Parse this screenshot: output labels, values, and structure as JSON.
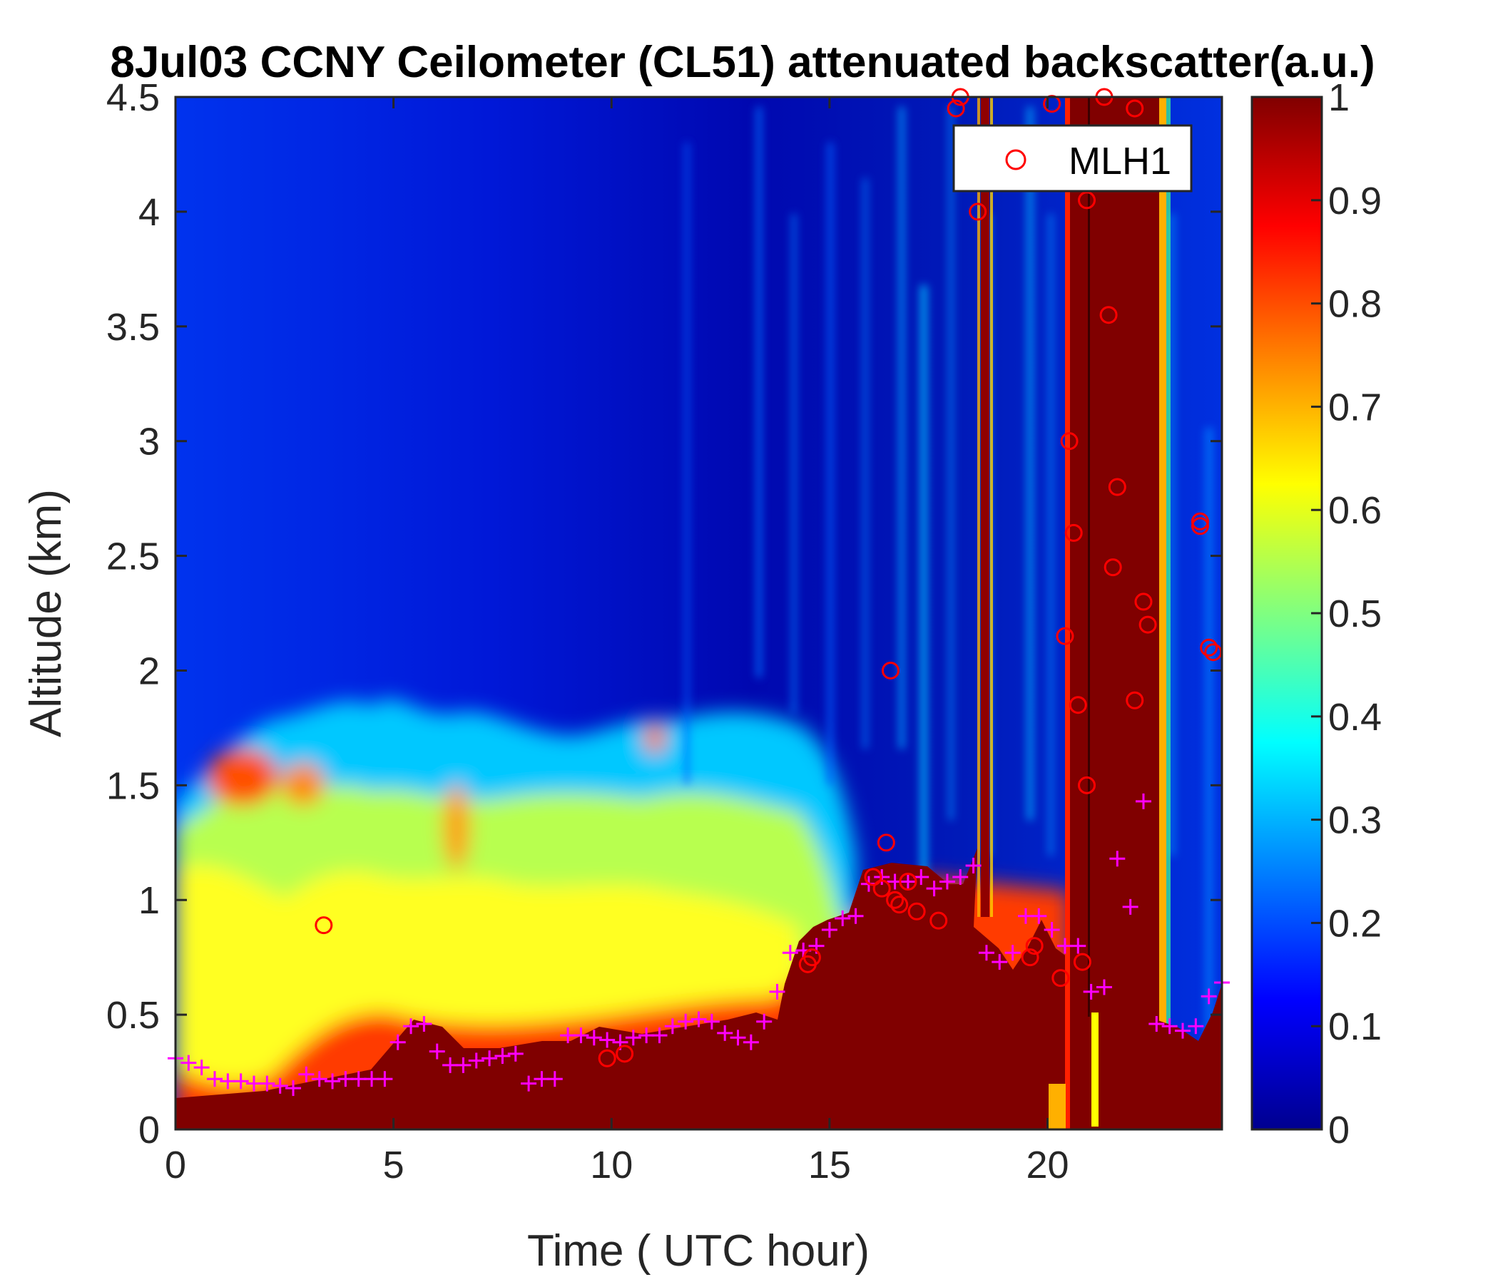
{
  "chart_data": {
    "type": "heatmap",
    "title": "8Jul03 CCNY Ceilometer (CL51) attenuated backscatter(a.u.)",
    "xlabel": "Time ( UTC hour)",
    "ylabel": "Altitude (km)",
    "xlim": [
      0,
      24
    ],
    "ylim": [
      0,
      4.5
    ],
    "xticks": [
      "0",
      "5",
      "10",
      "15",
      "20"
    ],
    "yticks": [
      "0",
      "0.5",
      "1",
      "1.5",
      "2",
      "2.5",
      "3",
      "3.5",
      "4",
      "4.5"
    ],
    "colorbar": {
      "range": [
        0,
        1
      ],
      "ticks": [
        "0",
        "0.1",
        "0.2",
        "0.3",
        "0.4",
        "0.5",
        "0.6",
        "0.7",
        "0.8",
        "0.9",
        "1"
      ],
      "colormap": [
        "#00008f",
        "#0000ff",
        "#0080ff",
        "#00ffff",
        "#80ff80",
        "#ffff00",
        "#ff8000",
        "#ff0000",
        "#800000"
      ]
    },
    "legend": {
      "placement": "top-right",
      "entries": [
        "MLH1"
      ]
    },
    "colors": {
      "mlh1": "#ff0000",
      "cross": "#ff00ff",
      "saturated": "#800000"
    },
    "series": [
      {
        "name": "MLH1",
        "marker": "circle",
        "x": [
          3.4,
          9.9,
          10.3,
          14.5,
          14.6,
          16.0,
          16.2,
          16.3,
          16.4,
          16.5,
          16.6,
          16.8,
          17.0,
          17.5,
          17.9,
          18.0,
          18.4,
          19.6,
          19.7,
          20.1,
          20.3,
          20.4,
          20.5,
          20.6,
          20.7,
          20.8,
          20.9,
          20.9,
          21.3,
          21.4,
          21.5,
          21.6,
          22.0,
          22.0,
          22.2,
          22.3,
          23.5,
          23.5,
          23.7,
          23.8
        ],
        "y": [
          0.89,
          0.31,
          0.33,
          0.72,
          0.75,
          1.1,
          1.05,
          1.25,
          2.0,
          1.0,
          0.98,
          1.08,
          0.95,
          0.91,
          4.45,
          4.5,
          4.0,
          0.75,
          0.8,
          4.47,
          0.66,
          2.15,
          3.0,
          2.6,
          1.85,
          0.73,
          1.5,
          4.05,
          4.5,
          3.55,
          2.45,
          2.8,
          4.45,
          1.87,
          2.3,
          2.2,
          2.65,
          2.63,
          2.1,
          2.08
        ]
      },
      {
        "name": "",
        "marker": "plus",
        "x": [
          0.0,
          0.3,
          0.6,
          0.9,
          1.2,
          1.5,
          1.8,
          2.1,
          2.4,
          2.7,
          3.0,
          3.3,
          3.6,
          3.9,
          4.2,
          4.5,
          4.8,
          5.1,
          5.4,
          5.7,
          6.0,
          6.3,
          6.6,
          6.9,
          7.2,
          7.5,
          7.8,
          8.1,
          8.4,
          8.7,
          9.0,
          9.3,
          9.6,
          9.9,
          10.2,
          10.5,
          10.8,
          11.1,
          11.4,
          11.7,
          12.0,
          12.3,
          12.6,
          12.9,
          13.2,
          13.5,
          13.8,
          14.1,
          14.4,
          14.7,
          15.0,
          15.3,
          15.6,
          15.9,
          16.2,
          16.5,
          16.8,
          17.1,
          17.4,
          17.7,
          18.0,
          18.3,
          18.6,
          18.9,
          19.2,
          19.5,
          19.8,
          20.1,
          20.4,
          20.7,
          21.0,
          21.3,
          21.6,
          21.9,
          22.2,
          22.5,
          22.8,
          23.1,
          23.4,
          23.7,
          24.0
        ],
        "y": [
          0.31,
          0.29,
          0.27,
          0.22,
          0.21,
          0.21,
          0.2,
          0.2,
          0.19,
          0.18,
          0.24,
          0.22,
          0.21,
          0.22,
          0.22,
          0.22,
          0.22,
          0.38,
          0.45,
          0.46,
          0.34,
          0.28,
          0.28,
          0.3,
          0.31,
          0.32,
          0.33,
          0.2,
          0.22,
          0.22,
          0.41,
          0.41,
          0.4,
          0.39,
          0.38,
          0.4,
          0.41,
          0.41,
          0.45,
          0.47,
          0.48,
          0.47,
          0.42,
          0.4,
          0.38,
          0.47,
          0.6,
          0.77,
          0.78,
          0.8,
          0.87,
          0.92,
          0.93,
          1.07,
          1.1,
          1.08,
          1.08,
          1.1,
          1.05,
          1.08,
          1.1,
          1.15,
          0.77,
          0.73,
          0.77,
          0.93,
          0.93,
          0.87,
          0.8,
          0.8,
          0.6,
          0.62,
          1.18,
          0.97,
          1.43,
          0.46,
          0.45,
          0.43,
          0.45,
          0.58,
          0.64
        ]
      }
    ]
  }
}
